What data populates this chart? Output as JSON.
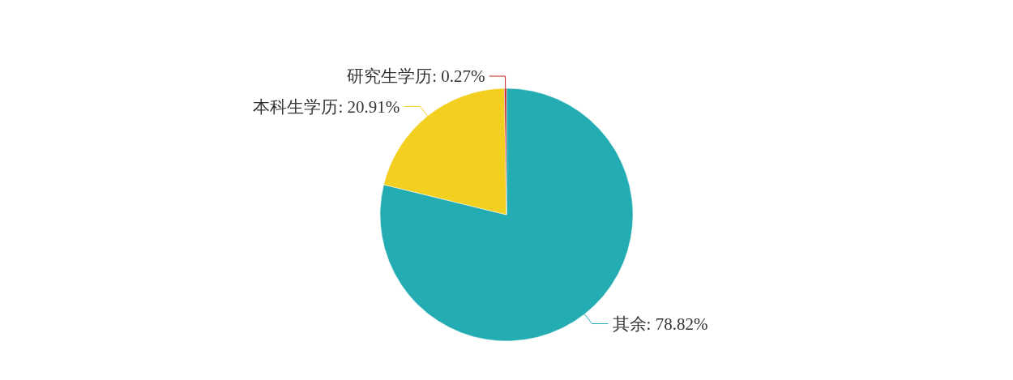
{
  "chart_data": {
    "type": "pie",
    "categories": [
      "其余",
      "本科生学历",
      "研究生学历"
    ],
    "values": [
      78.82,
      20.91,
      0.27
    ],
    "colors": [
      "#23adb2",
      "#f3d020",
      "#c82222"
    ],
    "value_labels": [
      "78.82%",
      "20.91%",
      "0.27%"
    ]
  }
}
